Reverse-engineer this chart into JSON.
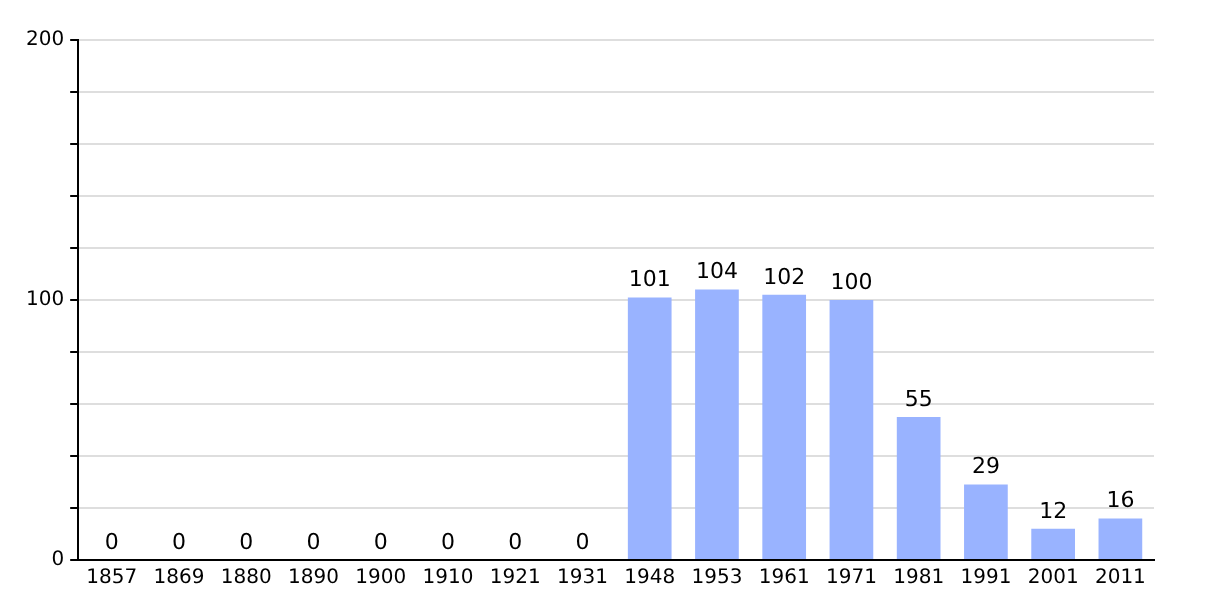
{
  "chart_data": {
    "type": "bar",
    "categories": [
      "1857",
      "1869",
      "1880",
      "1890",
      "1900",
      "1910",
      "1921",
      "1931",
      "1948",
      "1953",
      "1961",
      "1971",
      "1981",
      "1991",
      "2001",
      "2011"
    ],
    "values": [
      0,
      0,
      0,
      0,
      0,
      0,
      0,
      0,
      101,
      104,
      102,
      100,
      55,
      29,
      12,
      16
    ],
    "color": "#99b3ff",
    "ylim": [
      0,
      200
    ],
    "yticks": [
      0,
      {
        "value": 20,
        "label": null
      },
      {
        "value": 40,
        "label": null
      },
      {
        "value": 60,
        "label": null
      },
      {
        "value": 80,
        "label": null
      },
      100,
      {
        "value": 120,
        "label": null
      },
      {
        "value": 140,
        "label": null
      },
      {
        "value": 160,
        "label": null
      },
      {
        "value": 180,
        "label": null
      },
      200
    ],
    "grid": true,
    "data_labels": true
  }
}
